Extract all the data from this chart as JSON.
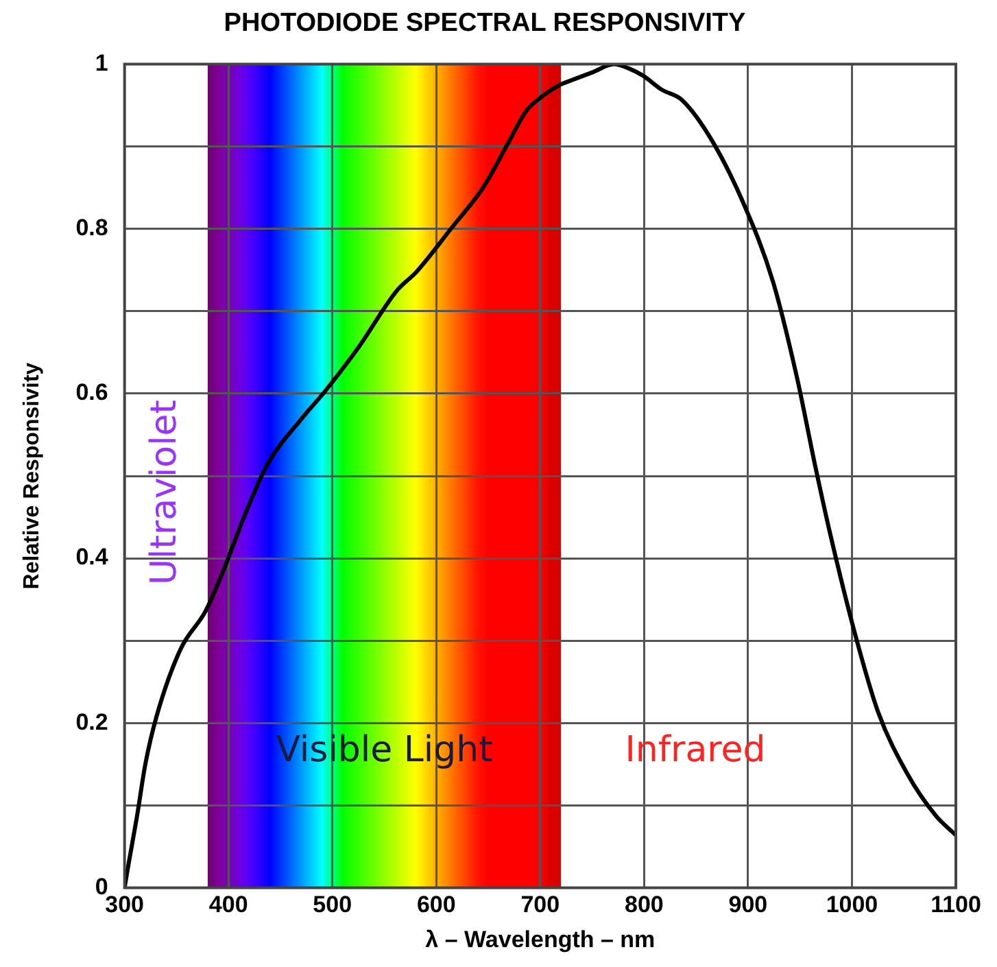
{
  "chart_data": {
    "type": "line",
    "title": "PHOTODIODE SPECTRAL RESPONSIVITY",
    "xlabel": "λ – Wavelength – nm",
    "ylabel": "Relative Responsivity",
    "x": [
      300,
      304,
      312,
      320,
      331,
      354,
      378,
      396,
      414,
      437,
      470,
      493,
      525,
      562,
      581,
      614,
      646,
      669,
      687,
      701,
      719,
      729,
      750,
      771,
      785,
      799,
      817,
      836,
      864,
      896,
      924,
      947,
      965,
      979,
      1003,
      1025,
      1053,
      1081,
      1100
    ],
    "series": [
      {
        "color": "#000000",
        "values": [
          0,
          0.03,
          0.087,
          0.15,
          0.209,
          0.29,
          0.336,
          0.388,
          0.447,
          0.513,
          0.569,
          0.603,
          0.656,
          0.725,
          0.748,
          0.8,
          0.852,
          0.904,
          0.944,
          0.96,
          0.975,
          0.98,
          0.99,
          1.0,
          0.995,
          0.986,
          0.969,
          0.957,
          0.91,
          0.83,
          0.736,
          0.62,
          0.51,
          0.43,
          0.308,
          0.214,
          0.139,
          0.087,
          0.064
        ]
      }
    ],
    "xlim": [
      300,
      1100
    ],
    "xticks": [
      300,
      400,
      500,
      600,
      700,
      800,
      900,
      1000,
      1100
    ],
    "ylim": [
      0,
      1
    ],
    "yticks": [
      0,
      {
        "value": 0.1,
        "label": null
      },
      0.2,
      {
        "value": 0.3,
        "label": null
      },
      0.4,
      {
        "value": 0.5,
        "label": null
      },
      0.6,
      {
        "value": 0.7,
        "label": null
      },
      0.8,
      {
        "value": 0.9,
        "label": null
      },
      1
    ],
    "bands": [
      {
        "axis": "x",
        "from": 380,
        "to": 720,
        "label": "Visible Light"
      }
    ],
    "annotations": [
      "Ultraviolet",
      "Infrared"
    ],
    "grid": true,
    "legend": false,
    "marker": "none",
    "line_style": "solid"
  }
}
